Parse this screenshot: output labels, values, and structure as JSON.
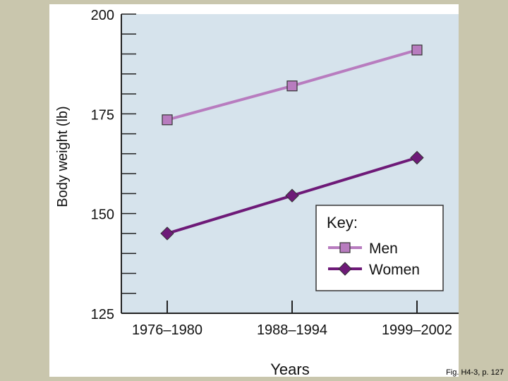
{
  "chart_data": {
    "type": "line",
    "title": "",
    "xlabel": "Years",
    "ylabel": "Body weight (lb)",
    "categories": [
      "1976–1980",
      "1988–1994",
      "1999–2002"
    ],
    "ylim": [
      125,
      200
    ],
    "yticks": [
      200,
      175,
      150,
      125
    ],
    "minor_tick_step": 5,
    "grid": false,
    "legend_title": "Key:",
    "legend_position": "bottom-right",
    "series": [
      {
        "name": "Men",
        "values": [
          173.5,
          182,
          191
        ],
        "color": "#b87cbf",
        "marker": "square"
      },
      {
        "name": "Women",
        "values": [
          145,
          154.5,
          164
        ],
        "color": "#6e1a78",
        "marker": "diamond"
      }
    ],
    "plot_background": "#d6e3ec"
  },
  "caption": "Fig. H4-3, p. 127"
}
